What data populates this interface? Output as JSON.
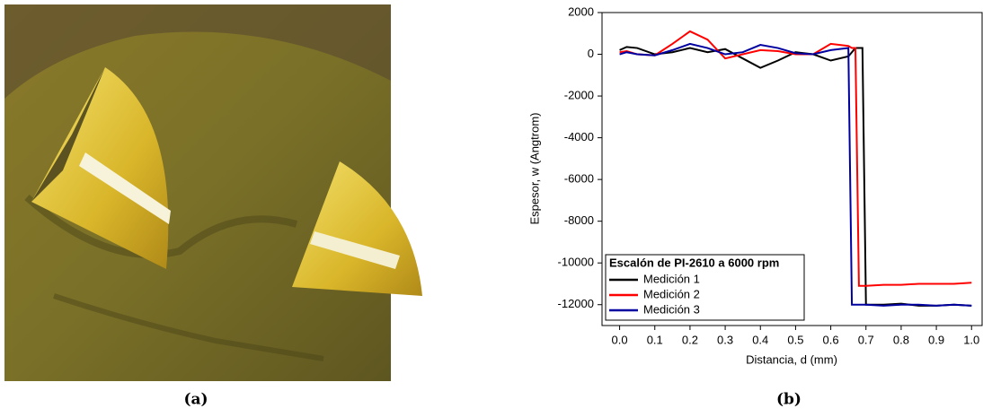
{
  "captions": [
    "(a)",
    "(b)"
  ],
  "chart_data": {
    "type": "line",
    "xlabel": "Distancia, d (mm)",
    "ylabel": "Espesor, w (Angtrom)",
    "legend_title": "Escalón de PI-2610 a 6000 rpm",
    "legend": "lower left",
    "x": [
      0,
      0.02,
      0.05,
      0.1,
      0.15,
      0.2,
      0.25,
      0.3,
      0.35,
      0.4,
      0.45,
      0.5,
      0.55,
      0.6,
      0.65,
      0.66,
      0.67,
      0.68,
      0.69,
      0.7,
      0.75,
      0.8,
      0.85,
      0.9,
      0.95,
      1.0
    ],
    "series": [
      {
        "name": "Medición 1",
        "color": "#000000",
        "values": [
          200,
          350,
          300,
          0,
          100,
          300,
          100,
          250,
          -200,
          -650,
          -300,
          100,
          0,
          -300,
          -100,
          100,
          300,
          300,
          300,
          -12000,
          -12000,
          -11950,
          -12050,
          -12050,
          -12000,
          -12050
        ]
      },
      {
        "name": "Medición 2",
        "color": "#ff0000",
        "values": [
          100,
          150,
          0,
          -50,
          500,
          1100,
          700,
          -200,
          0,
          200,
          150,
          0,
          0,
          500,
          400,
          300,
          300,
          -11100,
          -11100,
          -11100,
          -11050,
          -11050,
          -11000,
          -11000,
          -11000,
          -10950
        ]
      },
      {
        "name": "Medición 3",
        "color": "#0000a0",
        "values": [
          0,
          100,
          0,
          -50,
          200,
          500,
          300,
          0,
          100,
          450,
          300,
          50,
          0,
          200,
          300,
          -12000,
          -12000,
          -12000,
          -12000,
          -12000,
          -12050,
          -12000,
          -12000,
          -12050,
          -12000,
          -12050
        ]
      }
    ],
    "xlim": [
      -0.05,
      1.03
    ],
    "ylim": [
      -13000,
      2000
    ],
    "xticks": [
      {
        "value": 0,
        "label": "0.0"
      },
      0.1,
      0.2,
      0.3,
      0.4,
      0.5,
      0.6,
      0.7,
      0.8,
      0.9,
      {
        "value": 1,
        "label": "1.0"
      }
    ],
    "yticks": [
      2000,
      0,
      -2000,
      -4000,
      -6000,
      -8000,
      -10000,
      -12000
    ]
  }
}
